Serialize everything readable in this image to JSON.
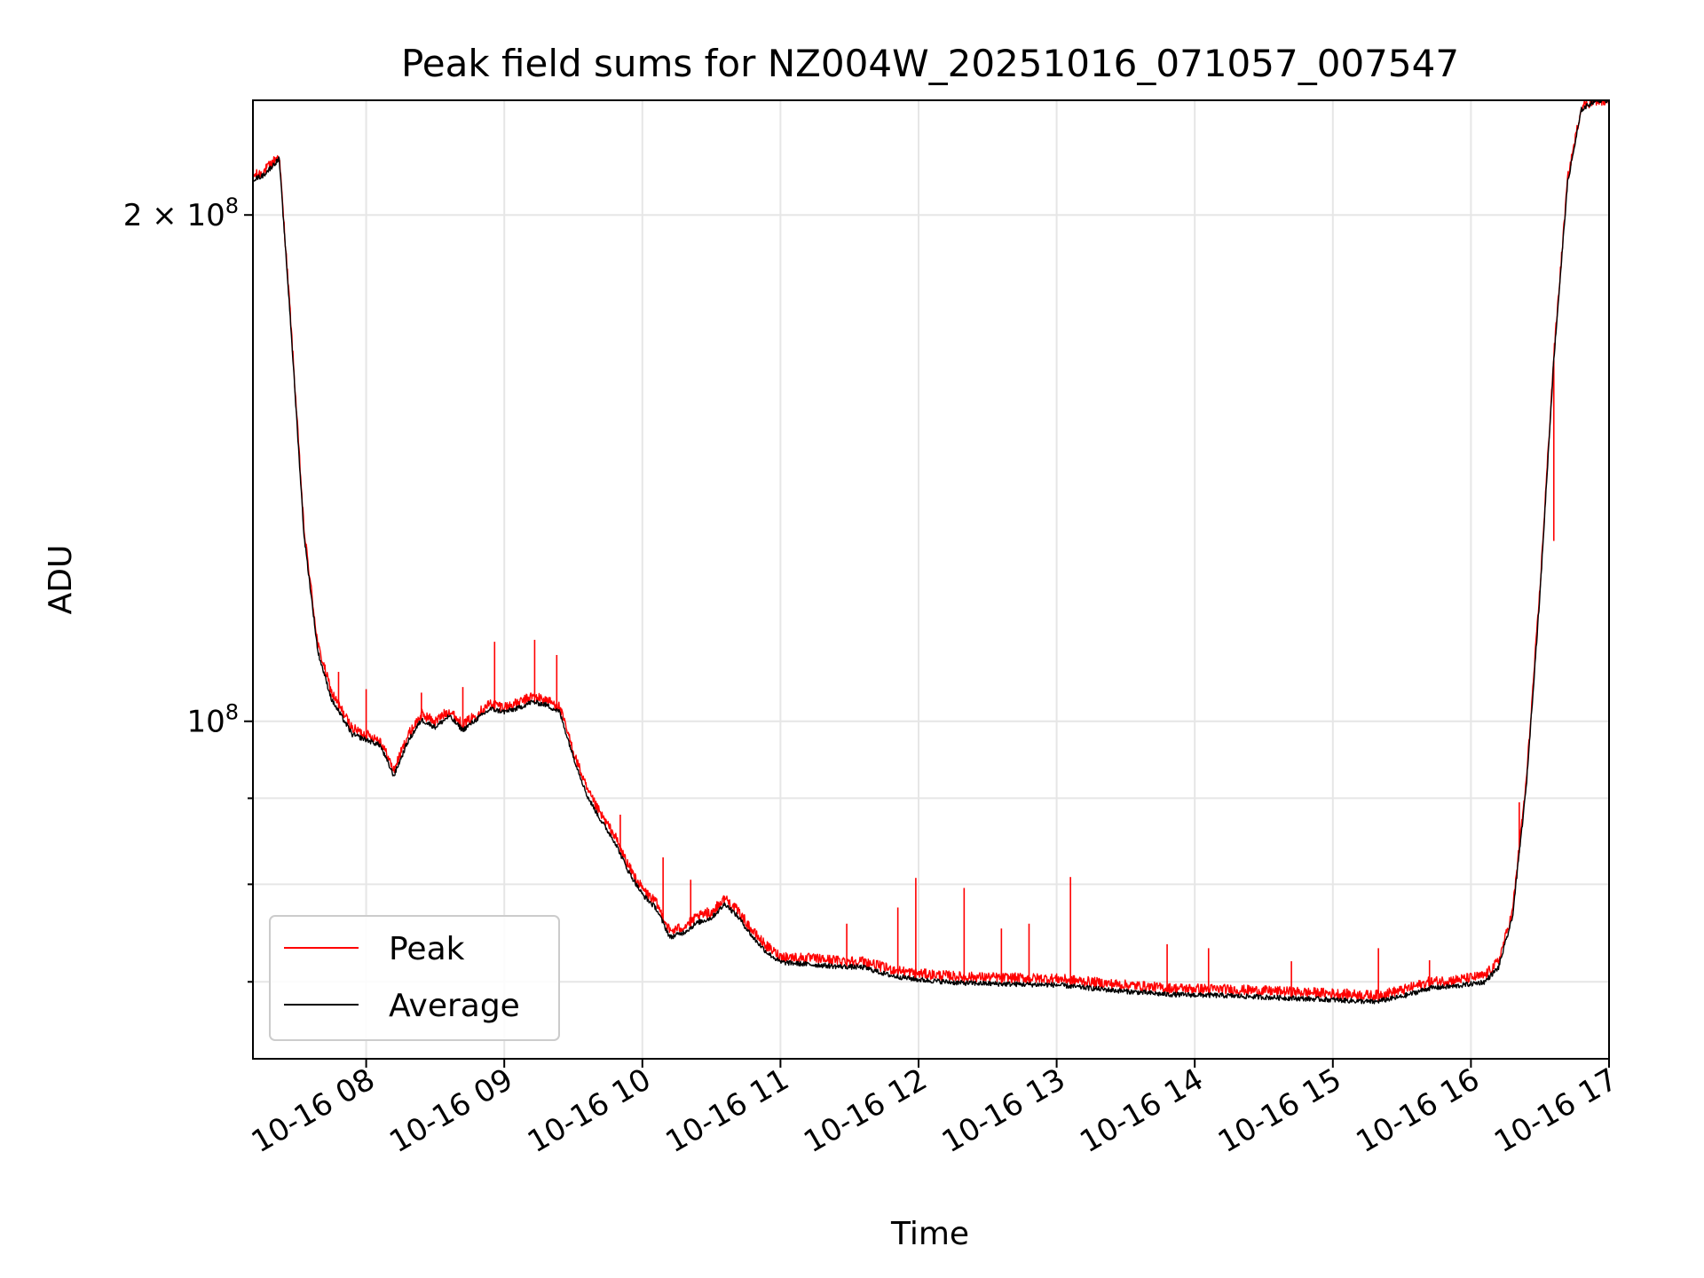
{
  "chart_data": {
    "type": "line",
    "title": "Peak field sums for NZ004W_20251016_071057_007547",
    "xlabel": "Time",
    "ylabel": "ADU",
    "yscale": "log",
    "xlim": [
      7.18,
      17.0
    ],
    "ylim": [
      63000000,
      234000000
    ],
    "grid": true,
    "legend_location": "lower-left",
    "x_ticks": [
      {
        "value": 8,
        "label": "10-16 08"
      },
      {
        "value": 9,
        "label": "10-16 09"
      },
      {
        "value": 10,
        "label": "10-16 10"
      },
      {
        "value": 11,
        "label": "10-16 11"
      },
      {
        "value": 12,
        "label": "10-16 12"
      },
      {
        "value": 13,
        "label": "10-16 13"
      },
      {
        "value": 14,
        "label": "10-16 14"
      },
      {
        "value": 15,
        "label": "10-16 15"
      },
      {
        "value": 16,
        "label": "10-16 16"
      },
      {
        "value": 17,
        "label": "10-16 17"
      }
    ],
    "y_major_ticks": [
      {
        "value": 100000000,
        "base": "10",
        "exponent": "8",
        "mantissa": ""
      },
      {
        "value": 200000000,
        "base": "10",
        "exponent": "8",
        "mantissa": "2 × "
      }
    ],
    "y_minor_ticks": [
      70000000,
      80000000,
      90000000,
      300000000
    ],
    "series": [
      {
        "name": "Peak",
        "color": "#ff0000",
        "x": [
          7.18,
          7.25,
          7.3,
          7.37,
          7.45,
          7.55,
          7.65,
          7.75,
          7.9,
          8.0,
          8.1,
          8.2,
          8.3,
          8.4,
          8.5,
          8.6,
          8.7,
          8.8,
          8.9,
          9.0,
          9.1,
          9.2,
          9.3,
          9.4,
          9.5,
          9.6,
          9.7,
          9.8,
          9.9,
          10.0,
          10.1,
          10.2,
          10.3,
          10.4,
          10.5,
          10.6,
          10.7,
          10.8,
          10.9,
          11.0,
          11.2,
          11.4,
          11.6,
          11.8,
          12.0,
          12.3,
          12.6,
          13.0,
          13.4,
          13.8,
          14.2,
          14.6,
          15.0,
          15.3,
          15.5,
          15.7,
          15.9,
          16.1,
          16.2,
          16.3,
          16.4,
          16.5,
          16.6,
          16.7,
          16.8,
          16.9,
          17.0
        ],
        "y": [
          211000000,
          212000000,
          214000000,
          217000000,
          175000000,
          130000000,
          111000000,
          104000000,
          99000000,
          98200000,
          97500000,
          93500000,
          98000000,
          101000000,
          100000000,
          101500000,
          99500000,
          101000000,
          102500000,
          102000000,
          102500000,
          103500000,
          103000000,
          102000000,
          96000000,
          91000000,
          88000000,
          85500000,
          82000000,
          79500000,
          78000000,
          75000000,
          75500000,
          76500000,
          77000000,
          78500000,
          77000000,
          75000000,
          73500000,
          72500000,
          72300000,
          72100000,
          72000000,
          71200000,
          70800000,
          70500000,
          70400000,
          70300000,
          69800000,
          69400000,
          69300000,
          69100000,
          68900000,
          68700000,
          69200000,
          70000000,
          70200000,
          70600000,
          72000000,
          77000000,
          92000000,
          120000000,
          165000000,
          210000000,
          232000000,
          234000000,
          234000000
        ]
      },
      {
        "name": "Average",
        "color": "#000000",
        "x": [
          7.18,
          7.25,
          7.3,
          7.37,
          7.45,
          7.55,
          7.65,
          7.75,
          7.9,
          8.0,
          8.1,
          8.2,
          8.3,
          8.4,
          8.5,
          8.6,
          8.7,
          8.8,
          8.9,
          9.0,
          9.1,
          9.2,
          9.3,
          9.4,
          9.5,
          9.6,
          9.7,
          9.8,
          9.9,
          10.0,
          10.1,
          10.2,
          10.3,
          10.4,
          10.5,
          10.6,
          10.7,
          10.8,
          10.9,
          11.0,
          11.2,
          11.4,
          11.6,
          11.8,
          12.0,
          12.3,
          12.6,
          13.0,
          13.4,
          13.8,
          14.2,
          14.6,
          15.0,
          15.3,
          15.5,
          15.7,
          15.9,
          16.1,
          16.2,
          16.3,
          16.4,
          16.5,
          16.6,
          16.7,
          16.8,
          16.9,
          17.0
        ],
        "y": [
          210000000,
          211000000,
          213000000,
          216000000,
          174000000,
          129000000,
          110000000,
          103000000,
          98200000,
          97500000,
          96800000,
          92800000,
          97200000,
          100200000,
          99200000,
          100700000,
          98800000,
          100300000,
          101700000,
          101300000,
          101800000,
          102700000,
          102300000,
          101300000,
          95300000,
          90300000,
          87300000,
          84800000,
          81400000,
          78900000,
          77400000,
          74400000,
          74900000,
          75900000,
          76400000,
          77900000,
          76400000,
          74400000,
          72900000,
          71900000,
          71700000,
          71500000,
          71400000,
          70600000,
          70200000,
          69900000,
          69800000,
          69700000,
          69200000,
          68800000,
          68700000,
          68500000,
          68300000,
          68100000,
          68600000,
          69400000,
          69600000,
          70000000,
          71400000,
          76400000,
          91300000,
          119000000,
          164000000,
          209000000,
          231000000,
          234000000,
          234000000
        ]
      }
    ],
    "peak_spikes": [
      {
        "x": 7.8,
        "y": 107000000
      },
      {
        "x": 8.0,
        "y": 104500000
      },
      {
        "x": 8.4,
        "y": 104000000
      },
      {
        "x": 8.7,
        "y": 104800000
      },
      {
        "x": 8.93,
        "y": 111500000
      },
      {
        "x": 9.22,
        "y": 111800000
      },
      {
        "x": 9.38,
        "y": 109500000
      },
      {
        "x": 9.84,
        "y": 88000000
      },
      {
        "x": 10.15,
        "y": 83000000
      },
      {
        "x": 10.35,
        "y": 80500000
      },
      {
        "x": 10.47,
        "y": 77500000
      },
      {
        "x": 11.48,
        "y": 75800000
      },
      {
        "x": 11.85,
        "y": 77500000
      },
      {
        "x": 11.98,
        "y": 80700000
      },
      {
        "x": 12.33,
        "y": 79600000
      },
      {
        "x": 12.6,
        "y": 75300000
      },
      {
        "x": 12.8,
        "y": 75800000
      },
      {
        "x": 13.1,
        "y": 80800000
      },
      {
        "x": 13.8,
        "y": 73700000
      },
      {
        "x": 14.1,
        "y": 73300000
      },
      {
        "x": 14.7,
        "y": 72000000
      },
      {
        "x": 15.33,
        "y": 73300000
      },
      {
        "x": 15.7,
        "y": 72100000
      },
      {
        "x": 16.35,
        "y": 89500000
      },
      {
        "x": 16.6,
        "y": 128000000
      }
    ]
  }
}
